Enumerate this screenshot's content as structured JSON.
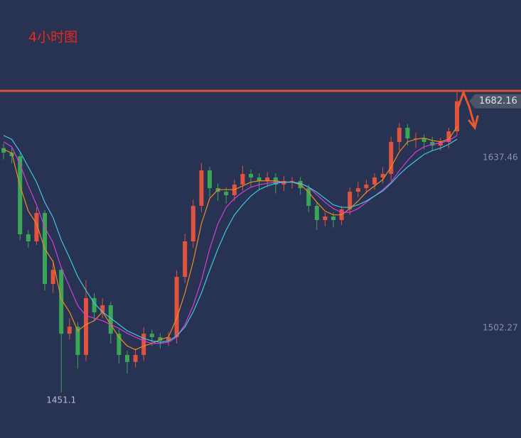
{
  "chart_data": {
    "type": "candlestick",
    "title": "4小时图",
    "ylim": [
      1414.96,
      1762.5
    ],
    "yticks": [
      1637.46,
      1502.27
    ],
    "resistance": 1690.4,
    "resistance_color": "#d9512c",
    "up_color": "#e0533f",
    "down_color": "#3aa756",
    "open": [
      1645,
      1641.4,
      1638.6,
      1576.6,
      1571.0,
      1593.5,
      1537.2,
      1548.4,
      1497.7,
      1503.3,
      1480.9,
      1526.0,
      1514.7,
      1520.3,
      1497.7,
      1480.9,
      1475.3,
      1480.9,
      1497.7,
      1495.0,
      1492.2,
      1495.0,
      1542.8,
      1571.0,
      1599.2,
      1627.3,
      1613.2,
      1610.4,
      1607.6,
      1616.1,
      1624.5,
      1621.7,
      1618.9,
      1621.7,
      1616.1,
      1618.9,
      1618.9,
      1613.2,
      1599.2,
      1587.9,
      1590.7,
      1587.9,
      1596.4,
      1610.4,
      1613.2,
      1616.1,
      1621.7,
      1624.5,
      1649.9,
      1661.1,
      1652.7,
      1652.7,
      1649.9,
      1647.0,
      1649.9,
      1658.3
    ],
    "high": [
      1648.5,
      1645.0,
      1641.0,
      1580.2,
      1598.0,
      1596.0,
      1556.0,
      1551.0,
      1510.0,
      1507.0,
      1540.0,
      1530.0,
      1526.0,
      1523.0,
      1501.0,
      1484.0,
      1486.0,
      1503.0,
      1501.0,
      1498.0,
      1499.0,
      1548.0,
      1577.0,
      1604.0,
      1633.0,
      1630.0,
      1617.0,
      1614.0,
      1620.0,
      1631.0,
      1628.0,
      1625.0,
      1626.0,
      1625.0,
      1623.0,
      1622.0,
      1622.0,
      1616.0,
      1602.0,
      1594.0,
      1594.0,
      1599.0,
      1614.0,
      1618.0,
      1620.0,
      1625.0,
      1630.0,
      1654.0,
      1665.0,
      1664.0,
      1657.0,
      1656.0,
      1654.0,
      1653.0,
      1661.0,
      1690.0
    ],
    "low": [
      1636.0,
      1633.0,
      1572.0,
      1566.0,
      1568.0,
      1532.0,
      1530.0,
      1451.1,
      1493.0,
      1470.0,
      1476.0,
      1508.0,
      1510.0,
      1490.0,
      1474.0,
      1466.0,
      1471.0,
      1476.0,
      1488.0,
      1486.0,
      1488.0,
      1490.0,
      1538.0,
      1566.0,
      1594.0,
      1606.0,
      1603.0,
      1601.0,
      1603.0,
      1611.0,
      1614.0,
      1612.0,
      1614.0,
      1609.0,
      1611.0,
      1613.0,
      1608.0,
      1594.0,
      1580.0,
      1583.0,
      1582.0,
      1584.0,
      1592.0,
      1606.0,
      1609.0,
      1612.0,
      1617.0,
      1619.0,
      1643.0,
      1647.0,
      1645.0,
      1644.0,
      1643.0,
      1643.0,
      1645.0,
      1655.0
    ],
    "close": [
      1641.4,
      1638.6,
      1576.6,
      1571.0,
      1593.5,
      1537.2,
      1548.4,
      1497.7,
      1503.3,
      1480.9,
      1526.0,
      1514.7,
      1520.3,
      1497.7,
      1480.9,
      1475.3,
      1480.9,
      1497.7,
      1495.0,
      1492.2,
      1495.0,
      1542.8,
      1571.0,
      1599.2,
      1627.3,
      1613.2,
      1610.4,
      1607.6,
      1616.1,
      1624.5,
      1621.7,
      1618.9,
      1621.7,
      1616.1,
      1618.9,
      1618.9,
      1613.2,
      1599.2,
      1587.9,
      1590.7,
      1587.9,
      1596.4,
      1610.4,
      1613.2,
      1616.1,
      1621.7,
      1624.5,
      1649.9,
      1661.1,
      1652.7,
      1652.7,
      1649.9,
      1647.0,
      1649.9,
      1658.3,
      1682.16
    ],
    "series": [
      {
        "color": "#f08a24",
        "values": [
          1644,
          1641,
          1615,
          1595,
          1585,
          1565,
          1555,
          1525,
          1515,
          1500,
          1505,
          1508,
          1515,
          1505,
          1495,
          1488,
          1485,
          1488,
          1490,
          1493,
          1495,
          1510,
          1530,
          1555,
          1585,
          1605,
          1612,
          1612,
          1612,
          1615,
          1618,
          1619,
          1619,
          1619,
          1618,
          1618,
          1616,
          1610,
          1602,
          1595,
          1592,
          1592,
          1597,
          1603,
          1610,
          1615,
          1620,
          1630,
          1642,
          1650,
          1652,
          1653,
          1651,
          1650,
          1652,
          1662
        ]
      },
      {
        "color": "#d23fd6",
        "values": [
          1650,
          1646,
          1632,
          1615,
          1600,
          1582,
          1570,
          1550,
          1535,
          1520,
          1512,
          1510,
          1508,
          1505,
          1502,
          1498,
          1495,
          1492,
          1490,
          1490,
          1491,
          1495,
          1505,
          1520,
          1540,
          1565,
          1585,
          1598,
          1605,
          1610,
          1614,
          1616,
          1617,
          1618,
          1618,
          1618,
          1617,
          1614,
          1608,
          1602,
          1597,
          1594,
          1594,
          1597,
          1602,
          1607,
          1612,
          1618,
          1627,
          1635,
          1642,
          1646,
          1648,
          1649,
          1651,
          1655
        ]
      },
      {
        "color": "#3fc6de",
        "values": [
          1655,
          1652,
          1642,
          1630,
          1618,
          1602,
          1590,
          1572,
          1558,
          1543,
          1532,
          1522,
          1515,
          1510,
          1505,
          1500,
          1497,
          1494,
          1492,
          1491,
          1492,
          1496,
          1503,
          1515,
          1530,
          1548,
          1565,
          1580,
          1592,
          1600,
          1607,
          1612,
          1615,
          1617,
          1618,
          1618,
          1617,
          1614,
          1610,
          1605,
          1600,
          1598,
          1598,
          1600,
          1603,
          1607,
          1611,
          1617,
          1624,
          1630,
          1635,
          1640,
          1643,
          1645,
          1648,
          1652
        ]
      }
    ]
  }
}
